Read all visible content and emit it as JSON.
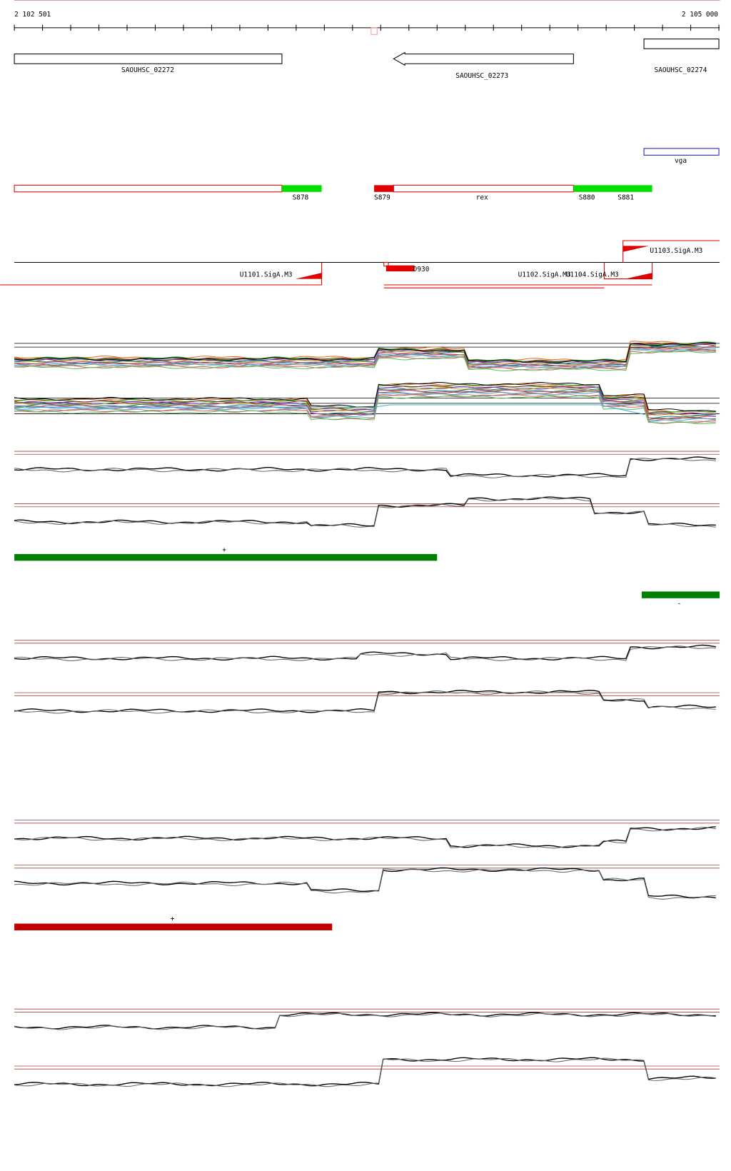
{
  "ruler": {
    "start": "2 102 501",
    "end": "2 105 000"
  },
  "genes": [
    {
      "label": "SAOUHSC_02272"
    },
    {
      "label": "SAOUHSC_02273"
    },
    {
      "label": "SAOUHSC_02274"
    },
    {
      "label": "vga"
    }
  ],
  "segments": [
    {
      "label": "S878"
    },
    {
      "label": "S879"
    },
    {
      "label": "rex"
    },
    {
      "label": "S880"
    },
    {
      "label": "S881"
    }
  ],
  "promoters": [
    {
      "label": "U1103.SigA.M3"
    },
    {
      "label": "U1101.SigA.M3"
    },
    {
      "label": "D930"
    },
    {
      "label": "U1102.SigA.M3"
    },
    {
      "label": "U1104.SigA.M3"
    }
  ],
  "strands": [
    "+",
    "-",
    "+"
  ]
}
